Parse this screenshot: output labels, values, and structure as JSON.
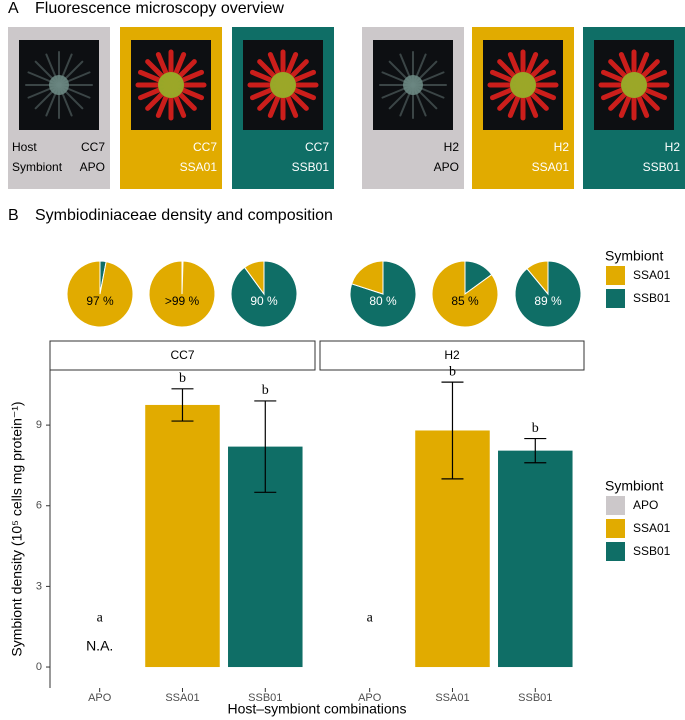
{
  "panel_a": {
    "label": "A",
    "title": "Fluorescence microscopy overview",
    "host_label": "Host",
    "symbiont_label": "Symbiont",
    "tiles": [
      {
        "host": "CC7",
        "symbiont": "APO",
        "color": "#ccc8ca"
      },
      {
        "host": "CC7",
        "symbiont": "SSA01",
        "color": "#e1ab00"
      },
      {
        "host": "CC7",
        "symbiont": "SSB01",
        "color": "#0f6e66"
      },
      {
        "host": "H2",
        "symbiont": "APO",
        "color": "#ccc8ca"
      },
      {
        "host": "H2",
        "symbiont": "SSA01",
        "color": "#e1ab00"
      },
      {
        "host": "H2",
        "symbiont": "SSB01",
        "color": "#0f6e66"
      }
    ]
  },
  "panel_b": {
    "label": "B",
    "title": "Symbiodiniaceae density and composition"
  },
  "chart_data": [
    {
      "type": "pie",
      "legend_title": "Symbiont",
      "series_names": [
        "SSA01",
        "SSB01"
      ],
      "colors": [
        "#e1ab00",
        "#0f6e66"
      ],
      "pies": [
        {
          "values": [
            97,
            3
          ],
          "value_labels": [
            "97 %",
            null
          ]
        },
        {
          "values": [
            99.5,
            0.5
          ],
          "value_labels": [
            ">99 %",
            null
          ]
        },
        {
          "values": [
            10,
            90
          ],
          "value_labels": [
            null,
            "90 %"
          ]
        },
        {
          "values": [
            20,
            80
          ],
          "value_labels": [
            null,
            "80 %"
          ]
        },
        {
          "values": [
            85,
            15
          ],
          "value_labels": [
            "85 %",
            null
          ]
        },
        {
          "values": [
            11,
            89
          ],
          "value_labels": [
            null,
            "89 %"
          ]
        }
      ]
    },
    {
      "type": "bar",
      "facets": [
        "CC7",
        "H2"
      ],
      "categories": [
        "APO",
        "SSA01",
        "SSB01"
      ],
      "colors": [
        "#ccc8ca",
        "#e1ab00",
        "#0f6e66"
      ],
      "panels": [
        {
          "values": [
            null,
            9.75,
            8.2
          ],
          "errors": [
            null,
            0.6,
            1.7
          ],
          "value_labels": [
            "N.A.",
            null,
            null
          ],
          "letters": [
            "a",
            "b",
            "b"
          ]
        },
        {
          "values": [
            null,
            8.8,
            8.05
          ],
          "errors": [
            null,
            1.8,
            0.45
          ],
          "letters": [
            "a",
            "b",
            "b"
          ]
        }
      ],
      "ylim": [
        -0.78,
        11.05
      ],
      "yticks": [
        0,
        3,
        6,
        9
      ],
      "grid": false,
      "ylabel": "Symbiont density (10⁵ cells mg protein⁻¹)",
      "xlabel": "Host–symbiont combinations",
      "legend_title": "Symbiont"
    }
  ]
}
